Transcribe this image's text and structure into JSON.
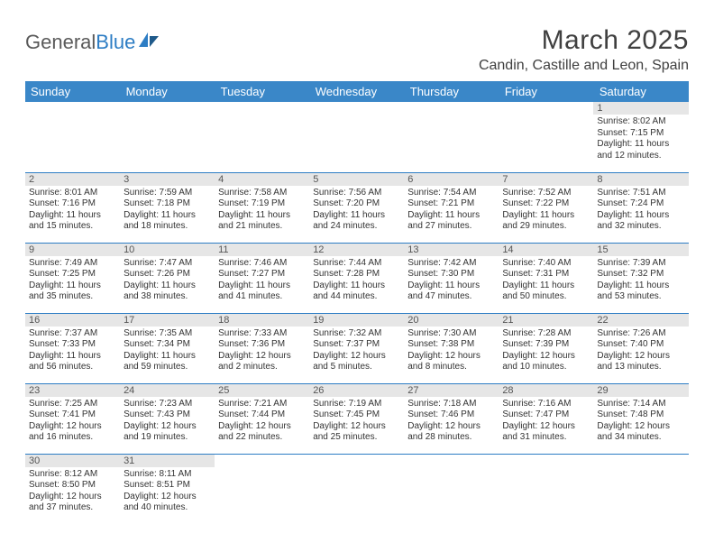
{
  "logo": {
    "part1": "General",
    "part2": "Blue"
  },
  "title": "March 2025",
  "location": "Candin, Castille and Leon, Spain",
  "colors": {
    "header_bg": "#3a87c8",
    "header_text": "#ffffff",
    "daynum_bg": "#e6e6e6",
    "daynum_text": "#555555",
    "border": "#2d7dc4",
    "logo_gray": "#5a5a5a",
    "logo_blue": "#2d7dc4"
  },
  "weekdays": [
    "Sunday",
    "Monday",
    "Tuesday",
    "Wednesday",
    "Thursday",
    "Friday",
    "Saturday"
  ],
  "weeks": [
    [
      null,
      null,
      null,
      null,
      null,
      null,
      {
        "n": "1",
        "sr": "Sunrise: 8:02 AM",
        "ss": "Sunset: 7:15 PM",
        "d1": "Daylight: 11 hours",
        "d2": "and 12 minutes."
      }
    ],
    [
      {
        "n": "2",
        "sr": "Sunrise: 8:01 AM",
        "ss": "Sunset: 7:16 PM",
        "d1": "Daylight: 11 hours",
        "d2": "and 15 minutes."
      },
      {
        "n": "3",
        "sr": "Sunrise: 7:59 AM",
        "ss": "Sunset: 7:18 PM",
        "d1": "Daylight: 11 hours",
        "d2": "and 18 minutes."
      },
      {
        "n": "4",
        "sr": "Sunrise: 7:58 AM",
        "ss": "Sunset: 7:19 PM",
        "d1": "Daylight: 11 hours",
        "d2": "and 21 minutes."
      },
      {
        "n": "5",
        "sr": "Sunrise: 7:56 AM",
        "ss": "Sunset: 7:20 PM",
        "d1": "Daylight: 11 hours",
        "d2": "and 24 minutes."
      },
      {
        "n": "6",
        "sr": "Sunrise: 7:54 AM",
        "ss": "Sunset: 7:21 PM",
        "d1": "Daylight: 11 hours",
        "d2": "and 27 minutes."
      },
      {
        "n": "7",
        "sr": "Sunrise: 7:52 AM",
        "ss": "Sunset: 7:22 PM",
        "d1": "Daylight: 11 hours",
        "d2": "and 29 minutes."
      },
      {
        "n": "8",
        "sr": "Sunrise: 7:51 AM",
        "ss": "Sunset: 7:24 PM",
        "d1": "Daylight: 11 hours",
        "d2": "and 32 minutes."
      }
    ],
    [
      {
        "n": "9",
        "sr": "Sunrise: 7:49 AM",
        "ss": "Sunset: 7:25 PM",
        "d1": "Daylight: 11 hours",
        "d2": "and 35 minutes."
      },
      {
        "n": "10",
        "sr": "Sunrise: 7:47 AM",
        "ss": "Sunset: 7:26 PM",
        "d1": "Daylight: 11 hours",
        "d2": "and 38 minutes."
      },
      {
        "n": "11",
        "sr": "Sunrise: 7:46 AM",
        "ss": "Sunset: 7:27 PM",
        "d1": "Daylight: 11 hours",
        "d2": "and 41 minutes."
      },
      {
        "n": "12",
        "sr": "Sunrise: 7:44 AM",
        "ss": "Sunset: 7:28 PM",
        "d1": "Daylight: 11 hours",
        "d2": "and 44 minutes."
      },
      {
        "n": "13",
        "sr": "Sunrise: 7:42 AM",
        "ss": "Sunset: 7:30 PM",
        "d1": "Daylight: 11 hours",
        "d2": "and 47 minutes."
      },
      {
        "n": "14",
        "sr": "Sunrise: 7:40 AM",
        "ss": "Sunset: 7:31 PM",
        "d1": "Daylight: 11 hours",
        "d2": "and 50 minutes."
      },
      {
        "n": "15",
        "sr": "Sunrise: 7:39 AM",
        "ss": "Sunset: 7:32 PM",
        "d1": "Daylight: 11 hours",
        "d2": "and 53 minutes."
      }
    ],
    [
      {
        "n": "16",
        "sr": "Sunrise: 7:37 AM",
        "ss": "Sunset: 7:33 PM",
        "d1": "Daylight: 11 hours",
        "d2": "and 56 minutes."
      },
      {
        "n": "17",
        "sr": "Sunrise: 7:35 AM",
        "ss": "Sunset: 7:34 PM",
        "d1": "Daylight: 11 hours",
        "d2": "and 59 minutes."
      },
      {
        "n": "18",
        "sr": "Sunrise: 7:33 AM",
        "ss": "Sunset: 7:36 PM",
        "d1": "Daylight: 12 hours",
        "d2": "and 2 minutes."
      },
      {
        "n": "19",
        "sr": "Sunrise: 7:32 AM",
        "ss": "Sunset: 7:37 PM",
        "d1": "Daylight: 12 hours",
        "d2": "and 5 minutes."
      },
      {
        "n": "20",
        "sr": "Sunrise: 7:30 AM",
        "ss": "Sunset: 7:38 PM",
        "d1": "Daylight: 12 hours",
        "d2": "and 8 minutes."
      },
      {
        "n": "21",
        "sr": "Sunrise: 7:28 AM",
        "ss": "Sunset: 7:39 PM",
        "d1": "Daylight: 12 hours",
        "d2": "and 10 minutes."
      },
      {
        "n": "22",
        "sr": "Sunrise: 7:26 AM",
        "ss": "Sunset: 7:40 PM",
        "d1": "Daylight: 12 hours",
        "d2": "and 13 minutes."
      }
    ],
    [
      {
        "n": "23",
        "sr": "Sunrise: 7:25 AM",
        "ss": "Sunset: 7:41 PM",
        "d1": "Daylight: 12 hours",
        "d2": "and 16 minutes."
      },
      {
        "n": "24",
        "sr": "Sunrise: 7:23 AM",
        "ss": "Sunset: 7:43 PM",
        "d1": "Daylight: 12 hours",
        "d2": "and 19 minutes."
      },
      {
        "n": "25",
        "sr": "Sunrise: 7:21 AM",
        "ss": "Sunset: 7:44 PM",
        "d1": "Daylight: 12 hours",
        "d2": "and 22 minutes."
      },
      {
        "n": "26",
        "sr": "Sunrise: 7:19 AM",
        "ss": "Sunset: 7:45 PM",
        "d1": "Daylight: 12 hours",
        "d2": "and 25 minutes."
      },
      {
        "n": "27",
        "sr": "Sunrise: 7:18 AM",
        "ss": "Sunset: 7:46 PM",
        "d1": "Daylight: 12 hours",
        "d2": "and 28 minutes."
      },
      {
        "n": "28",
        "sr": "Sunrise: 7:16 AM",
        "ss": "Sunset: 7:47 PM",
        "d1": "Daylight: 12 hours",
        "d2": "and 31 minutes."
      },
      {
        "n": "29",
        "sr": "Sunrise: 7:14 AM",
        "ss": "Sunset: 7:48 PM",
        "d1": "Daylight: 12 hours",
        "d2": "and 34 minutes."
      }
    ],
    [
      {
        "n": "30",
        "sr": "Sunrise: 8:12 AM",
        "ss": "Sunset: 8:50 PM",
        "d1": "Daylight: 12 hours",
        "d2": "and 37 minutes."
      },
      {
        "n": "31",
        "sr": "Sunrise: 8:11 AM",
        "ss": "Sunset: 8:51 PM",
        "d1": "Daylight: 12 hours",
        "d2": "and 40 minutes."
      },
      null,
      null,
      null,
      null,
      null
    ]
  ]
}
